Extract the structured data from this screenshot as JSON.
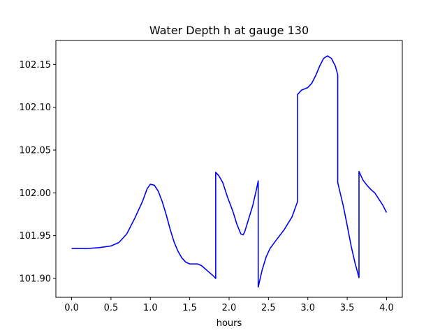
{
  "chart_data": {
    "type": "line",
    "title": "Water Depth h at gauge 130",
    "xlabel": "hours",
    "ylabel": "",
    "xlim": [
      -0.2,
      4.2
    ],
    "ylim": [
      101.878,
      102.178
    ],
    "xticks": [
      0.0,
      0.5,
      1.0,
      1.5,
      2.0,
      2.5,
      3.0,
      3.5,
      4.0
    ],
    "xtick_labels": [
      "0.0",
      "0.5",
      "1.0",
      "1.5",
      "2.0",
      "2.5",
      "3.0",
      "3.5",
      "4.0"
    ],
    "yticks": [
      101.9,
      101.95,
      102.0,
      102.05,
      102.1,
      102.15
    ],
    "ytick_labels": [
      "101.90",
      "101.95",
      "102.00",
      "102.05",
      "102.10",
      "102.15"
    ],
    "grid": false,
    "series": [
      {
        "color": "#0000ff",
        "points": [
          [
            0.0,
            101.935
          ],
          [
            0.2,
            101.935
          ],
          [
            0.35,
            101.936
          ],
          [
            0.5,
            101.938
          ],
          [
            0.6,
            101.942
          ],
          [
            0.7,
            101.952
          ],
          [
            0.8,
            101.97
          ],
          [
            0.9,
            101.99
          ],
          [
            0.96,
            102.005
          ],
          [
            1.0,
            102.01
          ],
          [
            1.05,
            102.009
          ],
          [
            1.1,
            102.002
          ],
          [
            1.15,
            101.99
          ],
          [
            1.2,
            101.975
          ],
          [
            1.25,
            101.958
          ],
          [
            1.3,
            101.943
          ],
          [
            1.35,
            101.932
          ],
          [
            1.4,
            101.924
          ],
          [
            1.45,
            101.919
          ],
          [
            1.5,
            101.917
          ],
          [
            1.6,
            101.917
          ],
          [
            1.65,
            101.915
          ],
          [
            1.7,
            101.911
          ],
          [
            1.75,
            101.907
          ],
          [
            1.8,
            101.903
          ],
          [
            1.83,
            101.9
          ],
          [
            1.83,
            102.024
          ],
          [
            1.87,
            102.02
          ],
          [
            1.92,
            102.012
          ],
          [
            1.98,
            101.995
          ],
          [
            2.05,
            101.978
          ],
          [
            2.1,
            101.963
          ],
          [
            2.15,
            101.952
          ],
          [
            2.18,
            101.951
          ],
          [
            2.2,
            101.955
          ],
          [
            2.25,
            101.97
          ],
          [
            2.3,
            101.985
          ],
          [
            2.35,
            102.005
          ],
          [
            2.37,
            102.014
          ],
          [
            2.37,
            101.89
          ],
          [
            2.42,
            101.91
          ],
          [
            2.47,
            101.925
          ],
          [
            2.52,
            101.935
          ],
          [
            2.6,
            101.945
          ],
          [
            2.7,
            101.957
          ],
          [
            2.8,
            101.972
          ],
          [
            2.87,
            101.99
          ],
          [
            2.87,
            102.115
          ],
          [
            2.92,
            102.12
          ],
          [
            3.0,
            102.123
          ],
          [
            3.05,
            102.128
          ],
          [
            3.1,
            102.137
          ],
          [
            3.15,
            102.148
          ],
          [
            3.2,
            102.157
          ],
          [
            3.25,
            102.16
          ],
          [
            3.3,
            102.157
          ],
          [
            3.35,
            102.148
          ],
          [
            3.38,
            102.138
          ],
          [
            3.38,
            102.012
          ],
          [
            3.45,
            101.985
          ],
          [
            3.5,
            101.962
          ],
          [
            3.55,
            101.938
          ],
          [
            3.6,
            101.918
          ],
          [
            3.65,
            101.901
          ],
          [
            3.65,
            102.025
          ],
          [
            3.7,
            102.015
          ],
          [
            3.75,
            102.009
          ],
          [
            3.8,
            102.004
          ],
          [
            3.85,
            102.0
          ],
          [
            3.9,
            101.993
          ],
          [
            3.95,
            101.986
          ],
          [
            4.0,
            101.977
          ]
        ]
      }
    ]
  }
}
